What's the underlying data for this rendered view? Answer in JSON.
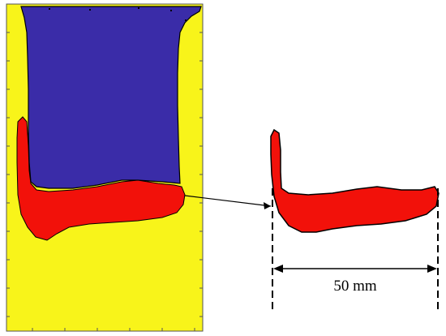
{
  "colors": {
    "background_field": "#f8f41a",
    "upper_region": "#3a2ca8",
    "highlight_region": "#f2110a",
    "outline": "#000000"
  },
  "dimension": {
    "label": "50 mm"
  }
}
